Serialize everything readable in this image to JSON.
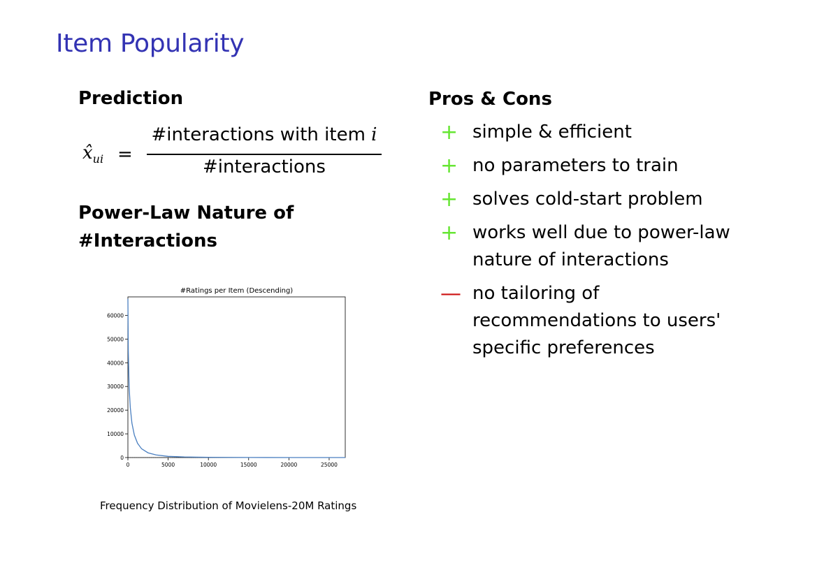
{
  "slide": {
    "title": "Item Popularity"
  },
  "left": {
    "heading_prediction": "Prediction",
    "formula": {
      "lhs_symbol": "x̂",
      "lhs_subscript": "ui",
      "equals": "=",
      "numerator_text": "#interactions with item ",
      "numerator_var": "i",
      "denominator": "#interactions"
    },
    "heading_powerlaw": "Power-Law Nature of #Interactions",
    "figure_caption": "Frequency Distribution of Movielens-20M Ratings"
  },
  "right": {
    "heading": "Pros & Cons",
    "items": [
      {
        "sign": "+",
        "kind": "pro",
        "text": "simple & efficient"
      },
      {
        "sign": "+",
        "kind": "pro",
        "text": "no parameters to train"
      },
      {
        "sign": "+",
        "kind": "pro",
        "text": "solves cold-start problem"
      },
      {
        "sign": "+",
        "kind": "pro",
        "text": "works well due to power-law nature of interactions"
      },
      {
        "sign": "—",
        "kind": "con",
        "text": "no tailoring of recommendations to users' specific preferences"
      }
    ]
  },
  "chart_data": {
    "type": "line",
    "title": "#Ratings per Item (Descending)",
    "xlabel": "",
    "ylabel": "",
    "xlim": [
      0,
      27000
    ],
    "ylim": [
      0,
      67800
    ],
    "xticks": [
      0,
      5000,
      10000,
      15000,
      20000,
      25000
    ],
    "yticks": [
      0,
      10000,
      20000,
      30000,
      40000,
      50000,
      60000
    ],
    "grid": false,
    "line_color": "#4a7fc0",
    "series": [
      {
        "x": [
          0,
          50,
          150,
          300,
          500,
          800,
          1200,
          1700,
          2500,
          3500,
          5000,
          7000,
          10000,
          15000,
          20000,
          27000
        ],
        "y": [
          67000,
          45000,
          30000,
          21000,
          14500,
          9500,
          6000,
          3700,
          2000,
          1100,
          500,
          250,
          100,
          30,
          10,
          1
        ]
      }
    ]
  }
}
